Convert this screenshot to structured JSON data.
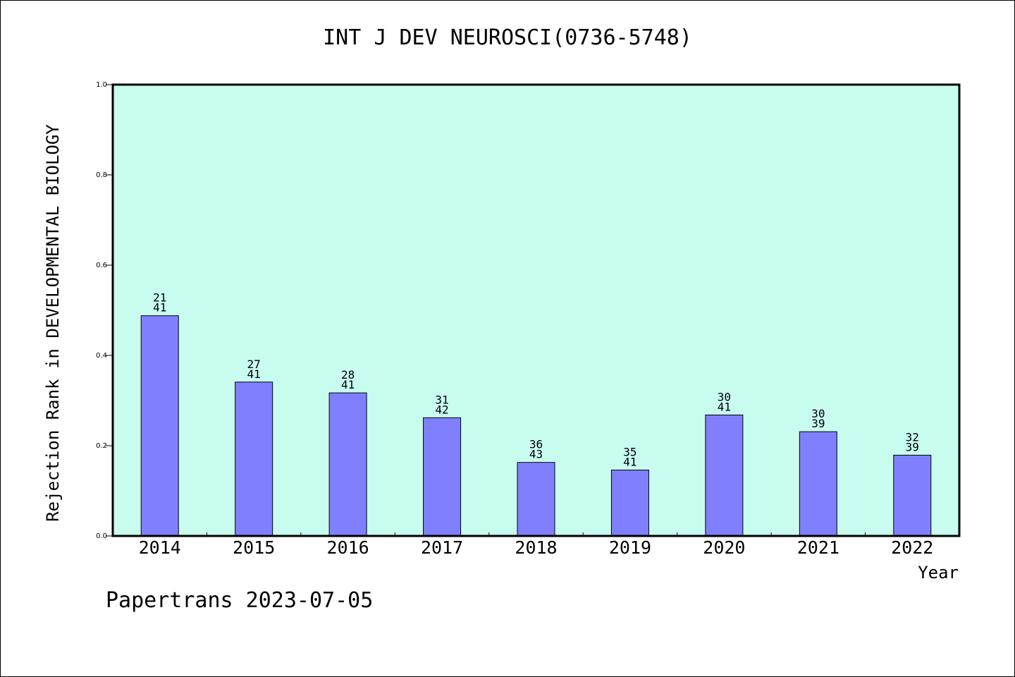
{
  "header": {
    "title": "INT J DEV NEUROSCI(0736-5748)"
  },
  "footer": {
    "note": "Papertrans 2023-07-05"
  },
  "chart_data": {
    "type": "bar",
    "title": "INT J DEV NEUROSCI(0736-5748)",
    "xlabel": "Year",
    "ylabel": "Rejection Rank in DEVELOPMENTAL BIOLOGY",
    "ylim": [
      0,
      1.0
    ],
    "yticks": [
      "0.0",
      "0.2",
      "0.4",
      "0.6",
      "0.8",
      "1.0"
    ],
    "categories": [
      "2014",
      "2015",
      "2016",
      "2017",
      "2018",
      "2019",
      "2020",
      "2021",
      "2022"
    ],
    "values": [
      0.488,
      0.341,
      0.317,
      0.262,
      0.163,
      0.146,
      0.268,
      0.231,
      0.179
    ],
    "rank": [
      "21",
      "27",
      "28",
      "31",
      "36",
      "35",
      "30",
      "30",
      "32"
    ],
    "total": [
      "41",
      "41",
      "41",
      "42",
      "43",
      "41",
      "41",
      "39",
      "39"
    ],
    "colors": {
      "plot_bg": "#c8fcee",
      "bar": "#8080ff"
    },
    "grid": false
  }
}
